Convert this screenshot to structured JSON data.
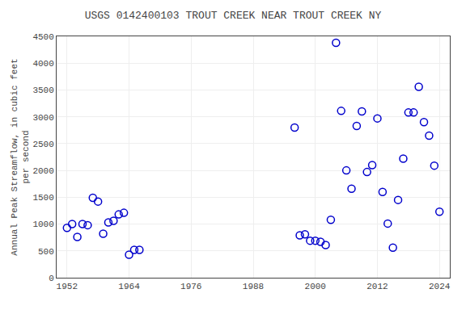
{
  "chart_data": {
    "type": "scatter",
    "title": "USGS 0142400103 TROUT CREEK NEAR TROUT CREEK NY",
    "ylabel": "Annual Peak Streamflow, in cubic feet\nper second",
    "x": [
      1952,
      1953,
      1954,
      1955,
      1956,
      1957,
      1958,
      1959,
      1960,
      1961,
      1962,
      1963,
      1964,
      1965,
      1966,
      1996,
      1997,
      1998,
      1999,
      2000,
      2001,
      2002,
      2003,
      2004,
      2005,
      2006,
      2007,
      2008,
      2009,
      2010,
      2011,
      2012,
      2013,
      2014,
      2015,
      2016,
      2017,
      2018,
      2019,
      2020,
      2021,
      2022,
      2023,
      2024
    ],
    "values": [
      930,
      1000,
      760,
      1000,
      980,
      1490,
      1420,
      820,
      1030,
      1060,
      1180,
      1210,
      430,
      520,
      520,
      2800,
      790,
      810,
      690,
      690,
      670,
      610,
      1080,
      4380,
      3110,
      2000,
      1660,
      2830,
      3100,
      1970,
      2100,
      2970,
      1600,
      1010,
      560,
      1450,
      2220,
      3080,
      3080,
      3560,
      2900,
      2650,
      2090,
      1230
    ],
    "color": "#0000CC",
    "marker": "circle-open",
    "xlim": [
      1950,
      2026
    ],
    "ylim": [
      0,
      4500
    ],
    "xticks": [
      1952,
      1964,
      1976,
      1988,
      2000,
      2012,
      2024
    ],
    "yticks": [
      0,
      500,
      1000,
      1500,
      2000,
      2500,
      3000,
      3500,
      4000,
      4500
    ],
    "grid": true
  }
}
